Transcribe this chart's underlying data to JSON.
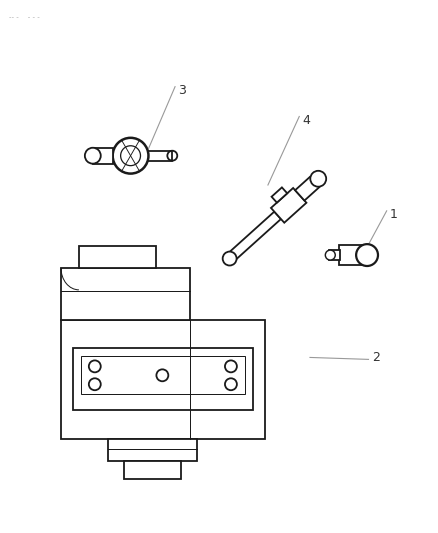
{
  "bg_color": "#ffffff",
  "line_color": "#1a1a1a",
  "label_color": "#333333",
  "fig_width": 4.39,
  "fig_height": 5.33,
  "dpi": 100
}
